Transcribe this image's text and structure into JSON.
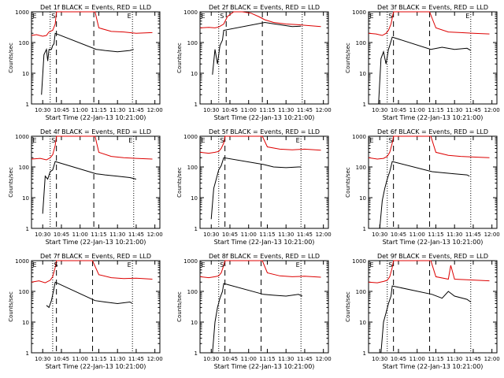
{
  "figure": {
    "xlabel": "Start Time (22-Jan-13 10:21:00)",
    "ylabel": "Counts/sec",
    "series_colors": {
      "events": "#000000",
      "lld": "#dd0000"
    },
    "background": "#ffffff"
  },
  "chart_data": [
    {
      "type": "line",
      "title": "Det 1f BLACK = Events, RED = LLD",
      "panel_id": "1",
      "xlabel": "Start Time (22-Jan-13 10:21:00)",
      "ylabel": "Counts/sec",
      "x_ticks": [
        "10:30",
        "10:45",
        "11:00",
        "11:15",
        "11:30",
        "11:45",
        "12:00"
      ],
      "y_ticks": [
        "1",
        "10",
        "100",
        "1000"
      ],
      "y_scale": "log",
      "ylim": [
        1,
        1000
      ],
      "markers": [
        "S",
        "E",
        "E"
      ],
      "dashed_lines": [
        "10:41",
        "11:11"
      ],
      "dotted_lines": [
        "10:36",
        "11:42"
      ],
      "series": [
        {
          "name": "Events",
          "color": "black",
          "x": [
            "10:29",
            "10:31",
            "10:33",
            "10:34",
            "10:35",
            "10:37",
            "10:38",
            "10:39",
            "10:40",
            "11:13",
            "11:20",
            "11:30",
            "11:40",
            "11:43"
          ],
          "y": [
            2,
            40,
            60,
            25,
            60,
            60,
            80,
            90,
            200,
            60,
            55,
            50,
            55,
            60
          ]
        },
        {
          "name": "LLD",
          "color": "red",
          "x": [
            "10:21",
            "10:25",
            "10:30",
            "10:33",
            "10:35",
            "10:38",
            "10:40",
            "10:41",
            "11:12",
            "11:15",
            "11:25",
            "11:35",
            "11:45",
            "11:58"
          ],
          "y": [
            170,
            180,
            160,
            170,
            220,
            250,
            400,
            1000,
            1000,
            300,
            230,
            220,
            200,
            210
          ]
        }
      ]
    },
    {
      "type": "line",
      "title": "Det 2f BLACK = Events, RED = LLD",
      "panel_id": "2",
      "xlabel": "Start Time (22-Jan-13 10:21:00)",
      "ylabel": "Counts/sec",
      "x_ticks": [
        "10:30",
        "10:45",
        "11:00",
        "11:15",
        "11:30",
        "11:45",
        "12:00"
      ],
      "y_ticks": [
        "1",
        "10",
        "100",
        "1000"
      ],
      "y_scale": "log",
      "ylim": [
        1,
        1000
      ],
      "markers": [
        "S",
        "E"
      ],
      "dashed_lines": [
        "10:42",
        "11:11"
      ],
      "dotted_lines": [
        "10:36",
        "11:43"
      ],
      "series": [
        {
          "name": "Events",
          "color": "black",
          "x": [
            "10:31",
            "10:33",
            "10:35",
            "10:37",
            "10:39",
            "10:40",
            "11:13",
            "11:18",
            "11:25",
            "11:35",
            "11:42"
          ],
          "y": [
            9,
            60,
            20,
            80,
            120,
            250,
            450,
            420,
            380,
            330,
            340
          ]
        },
        {
          "name": "LLD",
          "color": "red",
          "x": [
            "10:21",
            "10:28",
            "10:33",
            "10:36",
            "10:40",
            "10:43",
            "10:48",
            "10:55",
            "11:02",
            "11:08",
            "11:13",
            "11:20",
            "11:30",
            "11:40",
            "11:58"
          ],
          "y": [
            300,
            310,
            300,
            320,
            400,
            700,
            1000,
            1000,
            900,
            700,
            550,
            450,
            400,
            380,
            330
          ]
        }
      ]
    },
    {
      "type": "line",
      "title": "Det 3f BLACK = Events, RED = LLD",
      "panel_id": "3",
      "xlabel": "Start Time (22-Jan-13 10:21:00)",
      "ylabel": "Counts/sec",
      "x_ticks": [
        "10:30",
        "10:45",
        "11:00",
        "11:15",
        "11:30",
        "11:45",
        "12:00"
      ],
      "y_ticks": [
        "1",
        "10",
        "100",
        "1000"
      ],
      "y_scale": "log",
      "ylim": [
        1,
        1000
      ],
      "markers": [
        "S",
        "E",
        "E"
      ],
      "dashed_lines": [
        "10:41",
        "11:10"
      ],
      "dotted_lines": [
        "10:36",
        "11:43"
      ],
      "series": [
        {
          "name": "Events",
          "color": "black",
          "x": [
            "10:29",
            "10:31",
            "10:33",
            "10:35",
            "10:37",
            "10:38",
            "10:40",
            "11:11",
            "11:20",
            "11:30",
            "11:40",
            "11:43"
          ],
          "y": [
            1,
            30,
            50,
            20,
            60,
            80,
            150,
            60,
            70,
            60,
            65,
            55
          ]
        },
        {
          "name": "LLD",
          "color": "red",
          "x": [
            "10:21",
            "10:27",
            "10:32",
            "10:35",
            "10:37",
            "10:39",
            "10:41",
            "11:10",
            "11:15",
            "11:25",
            "11:35",
            "11:45",
            "11:58"
          ],
          "y": [
            200,
            190,
            170,
            200,
            250,
            400,
            1000,
            1000,
            300,
            220,
            210,
            200,
            190
          ]
        }
      ]
    },
    {
      "type": "line",
      "title": "Det 4f BLACK = Events, RED = LLD",
      "panel_id": "4",
      "xlabel": "Start Time (22-Jan-13 10:21:00)",
      "ylabel": "Counts/sec",
      "x_ticks": [
        "10:30",
        "10:45",
        "11:00",
        "11:15",
        "11:30",
        "11:45",
        "12:00"
      ],
      "y_ticks": [
        "1",
        "10",
        "100",
        "1000"
      ],
      "y_scale": "log",
      "ylim": [
        1,
        1000
      ],
      "markers": [
        "S",
        "E",
        "E"
      ],
      "dashed_lines": [
        "10:41",
        "11:11"
      ],
      "dotted_lines": [
        "10:36",
        "11:43"
      ],
      "series": [
        {
          "name": "Events",
          "color": "black",
          "x": [
            "10:30",
            "10:32",
            "10:34",
            "10:36",
            "10:38",
            "10:40",
            "11:13",
            "11:20",
            "11:30",
            "11:40",
            "11:45"
          ],
          "y": [
            3,
            50,
            40,
            70,
            80,
            150,
            60,
            55,
            50,
            45,
            40
          ]
        },
        {
          "name": "LLD",
          "color": "red",
          "x": [
            "10:21",
            "10:28",
            "10:33",
            "10:36",
            "10:38",
            "10:40",
            "10:41",
            "11:12",
            "11:15",
            "11:25",
            "11:35",
            "11:45",
            "11:58"
          ],
          "y": [
            180,
            190,
            170,
            200,
            250,
            500,
            1000,
            1000,
            300,
            220,
            200,
            190,
            180
          ]
        }
      ]
    },
    {
      "type": "line",
      "title": "Det 5f BLACK = Events, RED = LLD",
      "panel_id": "5",
      "xlabel": "Start Time (22-Jan-13 10:21:00)",
      "ylabel": "Counts/sec",
      "x_ticks": [
        "10:30",
        "10:45",
        "11:00",
        "11:15",
        "11:30",
        "11:45",
        "12:00"
      ],
      "y_ticks": [
        "1",
        "10",
        "100",
        "1000"
      ],
      "y_scale": "log",
      "ylim": [
        1,
        1000
      ],
      "markers": [
        "S",
        "E",
        "E"
      ],
      "dashed_lines": [
        "10:41",
        "11:10"
      ],
      "dotted_lines": [
        "10:36",
        "11:42"
      ],
      "series": [
        {
          "name": "Events",
          "color": "black",
          "x": [
            "10:30",
            "10:32",
            "10:34",
            "10:36",
            "10:38",
            "10:40",
            "11:12",
            "11:20",
            "11:30",
            "11:40",
            "11:42"
          ],
          "y": [
            2,
            20,
            40,
            80,
            110,
            200,
            120,
            100,
            95,
            100,
            100
          ]
        },
        {
          "name": "LLD",
          "color": "red",
          "x": [
            "10:21",
            "10:28",
            "10:33",
            "10:36",
            "10:38",
            "10:40",
            "10:41",
            "11:11",
            "11:15",
            "11:25",
            "11:35",
            "11:45",
            "11:58"
          ],
          "y": [
            300,
            280,
            300,
            320,
            400,
            600,
            1000,
            1000,
            450,
            380,
            360,
            380,
            350
          ]
        }
      ]
    },
    {
      "type": "line",
      "title": "Det 6f BLACK = Events, RED = LLD",
      "panel_id": "6",
      "xlabel": "Start Time (22-Jan-13 10:21:00)",
      "ylabel": "Counts/sec",
      "x_ticks": [
        "10:30",
        "10:45",
        "11:00",
        "11:15",
        "11:30",
        "11:45",
        "12:00"
      ],
      "y_ticks": [
        "1",
        "10",
        "100",
        "1000"
      ],
      "y_scale": "log",
      "ylim": [
        1,
        1000
      ],
      "markers": [
        "S",
        "E"
      ],
      "dashed_lines": [
        "10:41",
        "11:10"
      ],
      "dotted_lines": [
        "10:36",
        "11:43"
      ],
      "series": [
        {
          "name": "Events",
          "color": "black",
          "x": [
            "10:30",
            "10:32",
            "10:34",
            "10:36",
            "10:38",
            "10:40",
            "11:12",
            "11:20",
            "11:30",
            "11:40",
            "11:42"
          ],
          "y": [
            1,
            8,
            20,
            40,
            70,
            150,
            70,
            65,
            60,
            55,
            50
          ]
        },
        {
          "name": "LLD",
          "color": "red",
          "x": [
            "10:21",
            "10:28",
            "10:33",
            "10:36",
            "10:38",
            "10:40",
            "10:41",
            "11:11",
            "11:15",
            "11:25",
            "11:35",
            "11:45",
            "11:58"
          ],
          "y": [
            200,
            180,
            190,
            220,
            300,
            600,
            1000,
            1000,
            300,
            240,
            220,
            210,
            200
          ]
        }
      ]
    },
    {
      "type": "line",
      "title": "Det 7f BLACK = Events, RED = LLD",
      "panel_id": "7",
      "xlabel": "Start Time (22-Jan-13 10:21:00)",
      "ylabel": "Counts/sec",
      "x_ticks": [
        "10:30",
        "10:45",
        "11:00",
        "11:15",
        "11:30",
        "11:45",
        "12:00"
      ],
      "y_ticks": [
        "1",
        "10",
        "100",
        "1000"
      ],
      "y_scale": "log",
      "ylim": [
        1,
        1000
      ],
      "markers": [
        "S",
        "E",
        "E"
      ],
      "dashed_lines": [
        "10:41",
        "11:10"
      ],
      "dotted_lines": [
        "10:38",
        "11:42"
      ],
      "series": [
        {
          "name": "Events",
          "color": "black",
          "x": [
            "10:33",
            "10:35",
            "10:37",
            "10:39",
            "10:40",
            "11:12",
            "11:20",
            "11:30",
            "11:40",
            "11:42"
          ],
          "y": [
            35,
            30,
            50,
            120,
            200,
            50,
            45,
            40,
            45,
            40
          ]
        },
        {
          "name": "LLD",
          "color": "red",
          "x": [
            "10:21",
            "10:27",
            "10:32",
            "10:36",
            "10:38",
            "10:40",
            "10:41",
            "11:10",
            "11:15",
            "11:25",
            "11:35",
            "11:45",
            "11:58"
          ],
          "y": [
            200,
            220,
            190,
            230,
            300,
            600,
            1000,
            1000,
            350,
            280,
            260,
            270,
            250
          ]
        }
      ]
    },
    {
      "type": "line",
      "title": "Det 8f BLACK = Events, RED = LLD",
      "panel_id": "8",
      "xlabel": "Start Time (22-Jan-13 10:21:00)",
      "ylabel": "Counts/sec",
      "x_ticks": [
        "10:30",
        "10:45",
        "11:00",
        "11:15",
        "11:30",
        "11:45",
        "12:00"
      ],
      "y_ticks": [
        "1",
        "10",
        "100",
        "1000"
      ],
      "y_scale": "log",
      "ylim": [
        1,
        1000
      ],
      "markers": [
        "S",
        "E",
        "E"
      ],
      "dashed_lines": [
        "10:41",
        "11:10"
      ],
      "dotted_lines": [
        "10:36",
        "11:42"
      ],
      "series": [
        {
          "name": "Events",
          "color": "black",
          "x": [
            "10:31",
            "10:33",
            "10:35",
            "10:37",
            "10:39",
            "10:40",
            "11:12",
            "11:20",
            "11:30",
            "11:40",
            "11:43"
          ],
          "y": [
            1,
            10,
            30,
            60,
            100,
            180,
            80,
            75,
            70,
            80,
            70
          ]
        },
        {
          "name": "LLD",
          "color": "red",
          "x": [
            "10:21",
            "10:28",
            "10:33",
            "10:36",
            "10:38",
            "10:40",
            "10:41",
            "11:11",
            "11:15",
            "11:25",
            "11:35",
            "11:45",
            "11:58"
          ],
          "y": [
            300,
            280,
            300,
            320,
            400,
            700,
            1000,
            1000,
            400,
            320,
            300,
            310,
            290
          ]
        }
      ]
    },
    {
      "type": "line",
      "title": "Det 9f BLACK = Events, RED = LLD",
      "panel_id": "9",
      "xlabel": "Start Time (22-Jan-13 10:21:00)",
      "ylabel": "Counts/sec",
      "x_ticks": [
        "10:30",
        "10:45",
        "11:00",
        "11:15",
        "11:30",
        "11:45",
        "12:00"
      ],
      "y_ticks": [
        "1",
        "10",
        "100",
        "1000"
      ],
      "y_scale": "log",
      "ylim": [
        1,
        1000
      ],
      "markers": [
        "S",
        "E"
      ],
      "dashed_lines": [
        "10:41",
        "11:10"
      ],
      "dotted_lines": [
        "10:36",
        "11:43"
      ],
      "series": [
        {
          "name": "Events",
          "color": "black",
          "x": [
            "10:31",
            "10:33",
            "10:35",
            "10:37",
            "10:39",
            "10:40",
            "11:12",
            "11:20",
            "11:25",
            "11:30",
            "11:40",
            "11:43"
          ],
          "y": [
            1,
            10,
            20,
            40,
            70,
            150,
            80,
            60,
            100,
            70,
            55,
            45
          ]
        },
        {
          "name": "LLD",
          "color": "red",
          "x": [
            "10:21",
            "10:28",
            "10:33",
            "10:36",
            "10:38",
            "10:40",
            "10:41",
            "11:11",
            "11:15",
            "11:25",
            "11:27",
            "11:30",
            "11:40",
            "11:58"
          ],
          "y": [
            200,
            190,
            210,
            230,
            300,
            600,
            1000,
            1000,
            300,
            250,
            700,
            250,
            240,
            220
          ]
        }
      ]
    }
  ]
}
